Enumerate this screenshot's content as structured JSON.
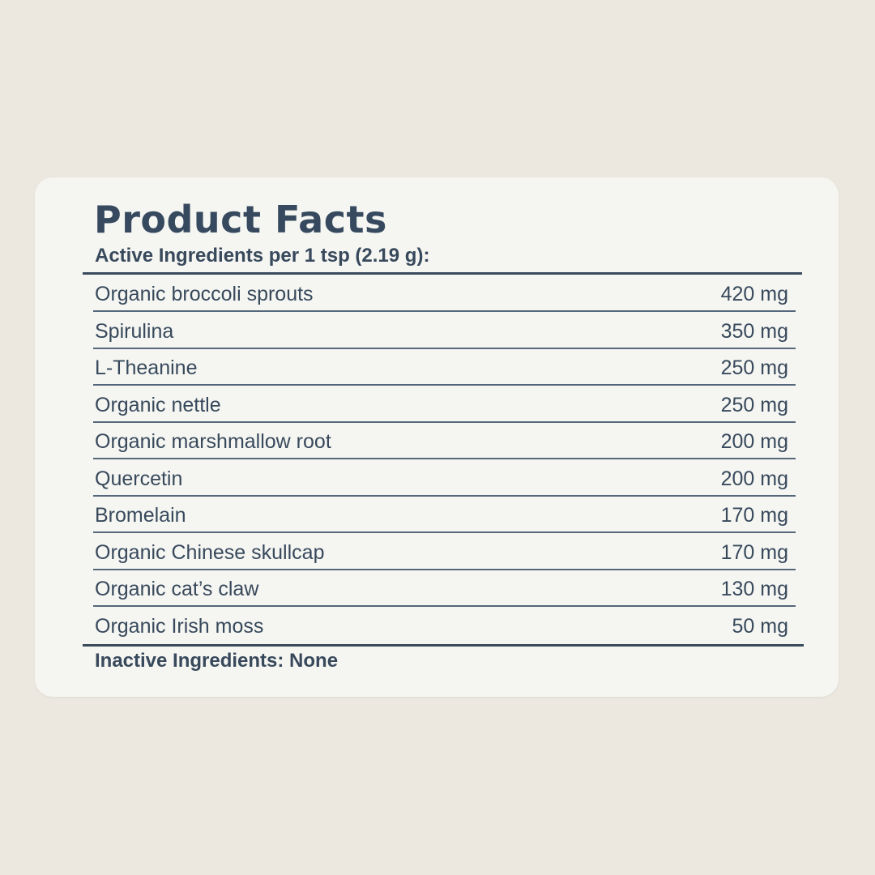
{
  "title": "Product Facts",
  "subtitle": "Active Ingredients per 1 tsp (2.19 g):",
  "ingredients": [
    {
      "name": "Organic broccoli sprouts",
      "amount": "420 mg"
    },
    {
      "name": "Spirulina",
      "amount": "350 mg"
    },
    {
      "name": "L-Theanine",
      "amount": "250 mg"
    },
    {
      "name": "Organic nettle",
      "amount": "250 mg"
    },
    {
      "name": "Organic marshmallow root",
      "amount": "200 mg"
    },
    {
      "name": "Quercetin",
      "amount": "200 mg"
    },
    {
      "name": "Bromelain",
      "amount": "170 mg"
    },
    {
      "name": "Organic Chinese skullcap",
      "amount": "170 mg"
    },
    {
      "name": "Organic cat’s claw",
      "amount": "130 mg"
    },
    {
      "name": "Organic Irish moss",
      "amount": "50 mg"
    }
  ],
  "inactive": "Inactive Ingredients: None",
  "colors": {
    "background": "#ece8e0",
    "card": "#f5f6f2",
    "text": "#38495c"
  }
}
